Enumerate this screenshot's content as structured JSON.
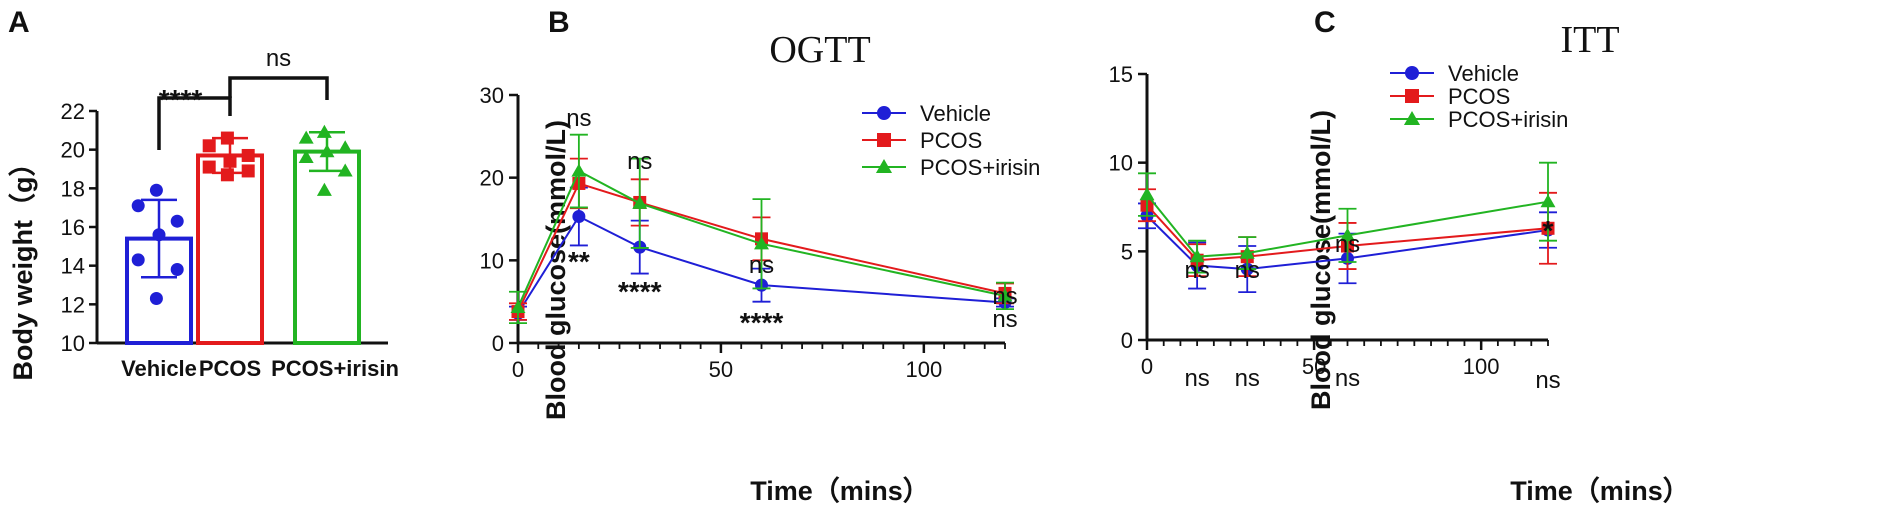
{
  "figure": {
    "panel_letters": [
      "A",
      "B",
      "C"
    ]
  },
  "colors": {
    "vehicle": "#1f1fd6",
    "pcos": "#e31a1c",
    "irisin": "#22b422",
    "axis": "#111111"
  },
  "chart_data": [
    {
      "panel": "A",
      "type": "bar",
      "title": "",
      "xlabel": "",
      "ylabel": "Body weight（g）",
      "ylim": [
        10,
        22
      ],
      "yticks": [
        10,
        12,
        14,
        16,
        18,
        20,
        22
      ],
      "ytick_labels": [
        "10",
        "12",
        "14",
        "16",
        "18",
        "20",
        "22"
      ],
      "categories": [
        "Vehicle",
        "PCOS",
        "PCOS+irisin"
      ],
      "values": [
        15.4,
        19.7,
        19.9
      ],
      "errors": [
        2.0,
        0.9,
        1.0
      ],
      "points": [
        [
          17.9,
          17.1,
          16.3,
          15.6,
          14.3,
          13.8,
          12.3
        ],
        [
          20.6,
          20.2,
          19.7,
          19.4,
          19.1,
          18.9,
          18.7
        ],
        [
          20.9,
          20.6,
          20.1,
          19.9,
          19.6,
          18.9,
          17.9
        ]
      ],
      "markers": [
        "circle",
        "square",
        "triangle"
      ],
      "comparisons": [
        {
          "from": "Vehicle",
          "to": "PCOS",
          "label": "****"
        },
        {
          "from": "PCOS",
          "to": "PCOS+irisin",
          "label": "ns"
        }
      ]
    },
    {
      "panel": "B",
      "type": "line",
      "title": "OGTT",
      "xlabel": "Time（mins）",
      "ylabel": "Blood glucose(mmol/L)",
      "xlim": [
        0,
        120
      ],
      "ylim": [
        0,
        30
      ],
      "xticks": [
        0,
        50,
        100
      ],
      "xtick_labels": [
        "0",
        "50",
        "100"
      ],
      "yticks": [
        0,
        10,
        20,
        30
      ],
      "ytick_labels": [
        "0",
        "10",
        "20",
        "30"
      ],
      "x": [
        0,
        15,
        30,
        60,
        120
      ],
      "series": [
        {
          "name": "Vehicle",
          "marker": "circle",
          "values": [
            3.6,
            15.3,
            11.6,
            7.0,
            4.9
          ],
          "errors": [
            0.8,
            3.5,
            3.2,
            2.0,
            0.5
          ]
        },
        {
          "name": "PCOS",
          "marker": "square",
          "values": [
            3.8,
            19.3,
            17.0,
            12.6,
            6.0
          ],
          "errors": [
            1.0,
            3.0,
            2.8,
            2.6,
            1.2
          ]
        },
        {
          "name": "PCOS+irisin",
          "marker": "triangle",
          "values": [
            4.3,
            20.8,
            16.9,
            12.0,
            5.7
          ],
          "errors": [
            1.9,
            4.4,
            5.4,
            5.4,
            1.6
          ]
        }
      ],
      "legend": [
        "Vehicle",
        "PCOS",
        "PCOS+irisin"
      ],
      "legend_position": "top-right",
      "annotations_above": [
        {
          "x": 15,
          "label": "ns"
        },
        {
          "x": 30,
          "label": "ns"
        },
        {
          "x": 60,
          "label": "ns"
        },
        {
          "x": 120,
          "label": "ns"
        }
      ],
      "annotations_below": [
        {
          "x": 15,
          "label": "**"
        },
        {
          "x": 30,
          "label": "****"
        },
        {
          "x": 60,
          "label": "****"
        },
        {
          "x": 120,
          "label": "ns"
        }
      ]
    },
    {
      "panel": "C",
      "type": "line",
      "title": "ITT",
      "xlabel": "Time（mins）",
      "ylabel": "Blood glucose(mmol/L)",
      "xlim": [
        0,
        120
      ],
      "ylim": [
        0,
        15
      ],
      "xticks": [
        0,
        50,
        100
      ],
      "xtick_labels": [
        "0",
        "50",
        "100"
      ],
      "yticks": [
        0,
        5,
        10,
        15
      ],
      "ytick_labels": [
        "0",
        "5",
        "10",
        "15"
      ],
      "x": [
        0,
        15,
        30,
        60,
        120
      ],
      "series": [
        {
          "name": "Vehicle",
          "marker": "circle",
          "values": [
            7.0,
            4.2,
            4.0,
            4.6,
            6.2
          ],
          "errors": [
            0.7,
            1.3,
            1.3,
            1.4,
            1.0
          ]
        },
        {
          "name": "PCOS",
          "marker": "square",
          "values": [
            7.6,
            4.5,
            4.7,
            5.3,
            6.3
          ],
          "errors": [
            0.9,
            0.9,
            1.1,
            1.3,
            2.0
          ]
        },
        {
          "name": "PCOS+irisin",
          "marker": "triangle",
          "values": [
            8.2,
            4.7,
            4.9,
            5.9,
            7.8
          ],
          "errors": [
            1.2,
            0.9,
            0.9,
            1.5,
            2.2
          ]
        }
      ],
      "legend": [
        "Vehicle",
        "PCOS",
        "PCOS+irisin"
      ],
      "legend_position": "top-right",
      "annotations_above": [
        {
          "x": 15,
          "label": "ns"
        },
        {
          "x": 30,
          "label": "ns"
        },
        {
          "x": 60,
          "label": "ns"
        },
        {
          "x": 120,
          "label": "*"
        }
      ],
      "annotations_below": [
        {
          "x": 15,
          "label": "ns"
        },
        {
          "x": 30,
          "label": "ns"
        },
        {
          "x": 60,
          "label": "ns"
        },
        {
          "x": 120,
          "label": "ns"
        }
      ]
    }
  ]
}
